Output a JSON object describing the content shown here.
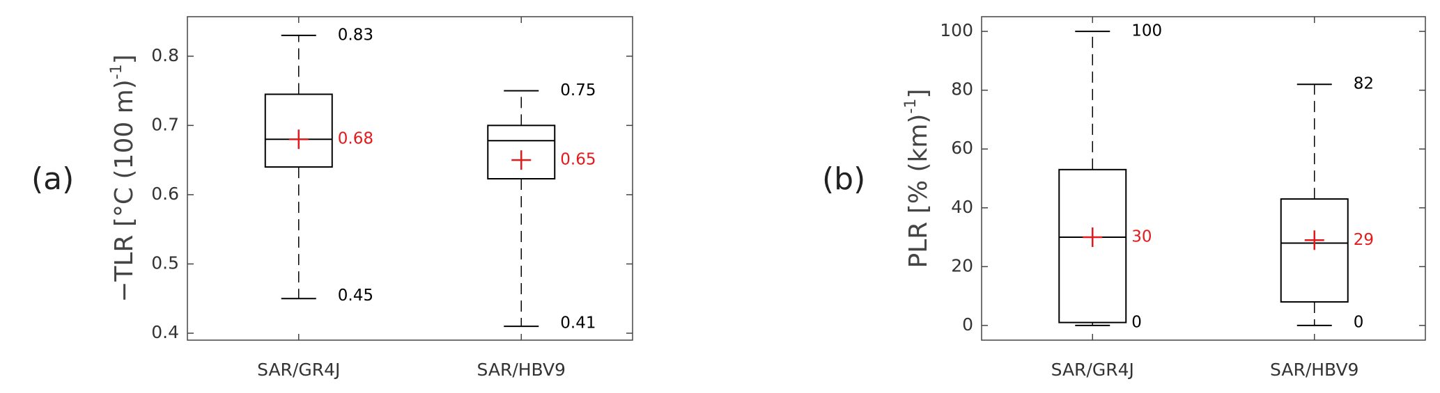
{
  "chart_data": [
    {
      "type": "box",
      "panel_label": "(a)",
      "y_label": {
        "text": "−TLR [°C (100 m)",
        "sup": "-1",
        "end": "]"
      },
      "categories": [
        "SAR/GR4J",
        "SAR/HBV9"
      ],
      "whislo": [
        0.45,
        0.41
      ],
      "q1": [
        0.64,
        0.623
      ],
      "med": [
        0.68,
        0.678
      ],
      "q3": [
        0.745,
        0.7
      ],
      "whishi": [
        0.83,
        0.75
      ],
      "mean": [
        0.68,
        0.65
      ],
      "box_color": "#000000",
      "mean_color": "#e31a1c",
      "ylim": [
        0.39,
        0.857
      ],
      "yticks": [
        0.4,
        0.5,
        0.6,
        0.7,
        0.8
      ]
    },
    {
      "type": "box",
      "panel_label": "(b)",
      "y_label": {
        "text": "PLR [% (km)",
        "sup": "-1",
        "end": "]"
      },
      "categories": [
        "SAR/GR4J",
        "SAR/HBV9"
      ],
      "whislo": [
        0,
        0
      ],
      "q1": [
        1,
        8
      ],
      "med": [
        30,
        28
      ],
      "q3": [
        53,
        43
      ],
      "whishi": [
        100,
        82
      ],
      "mean": [
        30,
        29
      ],
      "box_color": "#000000",
      "mean_color": "#e31a1c",
      "ylim": [
        -5,
        105
      ],
      "yticks": [
        0,
        20,
        40,
        60,
        80,
        100
      ]
    }
  ]
}
